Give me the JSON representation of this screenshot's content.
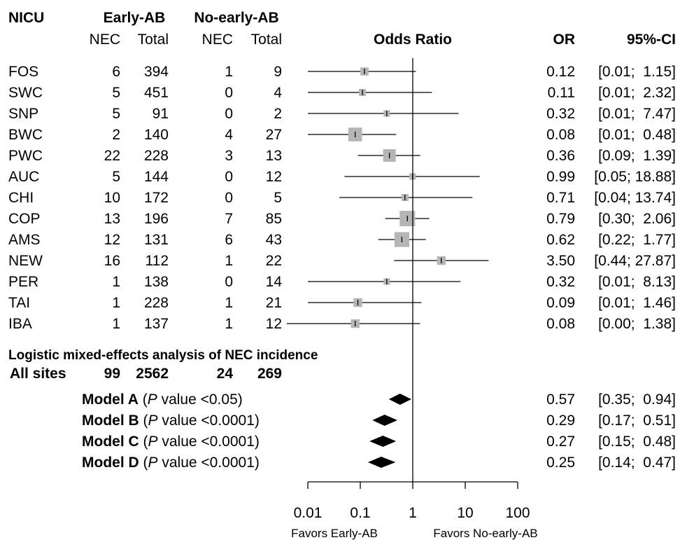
{
  "chart_data": {
    "type": "forest",
    "axis": {
      "scale": "log",
      "xlim": [
        0.01,
        100
      ],
      "ticks": [
        "0.01",
        "0.1",
        "1",
        "10",
        "100"
      ],
      "tick_values": [
        0.01,
        0.1,
        1,
        10,
        100
      ],
      "reference_line": 1,
      "left_label": "Favors Early-AB",
      "right_label": "Favors No-early-AB"
    },
    "headers": {
      "nicu": "NICU",
      "early": "Early-AB",
      "noearly": "No-early-AB",
      "nec": "NEC",
      "total": "Total",
      "odds_ratio": "Odds Ratio",
      "or": "OR",
      "ci": "95%-CI"
    },
    "sites": [
      {
        "name": "FOS",
        "early_nec": "6",
        "early_total": "394",
        "no_nec": "1",
        "no_total": "9",
        "or": 0.12,
        "lo": 0.01,
        "hi": 1.15,
        "or_text": "0.12",
        "ci_text": "[0.01;  1.15]",
        "weight": 0.35
      },
      {
        "name": "SWC",
        "early_nec": "5",
        "early_total": "451",
        "no_nec": "0",
        "no_total": "4",
        "or": 0.11,
        "lo": 0.01,
        "hi": 2.32,
        "or_text": "0.11",
        "ci_text": "[0.01;  2.32]",
        "weight": 0.25
      },
      {
        "name": "SNP",
        "early_nec": "5",
        "early_total": "91",
        "no_nec": "0",
        "no_total": "2",
        "or": 0.32,
        "lo": 0.01,
        "hi": 7.47,
        "or_text": "0.32",
        "ci_text": "[0.01;  7.47]",
        "weight": 0.2
      },
      {
        "name": "BWC",
        "early_nec": "2",
        "early_total": "140",
        "no_nec": "4",
        "no_total": "27",
        "or": 0.08,
        "lo": 0.01,
        "hi": 0.48,
        "or_text": "0.08",
        "ci_text": "[0.01;  0.48]",
        "weight": 0.85
      },
      {
        "name": "PWC",
        "early_nec": "22",
        "early_total": "228",
        "no_nec": "3",
        "no_total": "13",
        "or": 0.36,
        "lo": 0.09,
        "hi": 1.39,
        "or_text": "0.36",
        "ci_text": "[0.09;  1.39]",
        "weight": 0.75
      },
      {
        "name": "AUC",
        "early_nec": "5",
        "early_total": "144",
        "no_nec": "0",
        "no_total": "12",
        "or": 0.99,
        "lo": 0.05,
        "hi": 18.88,
        "or_text": "0.99",
        "ci_text": "[0.05; 18.88]",
        "weight": 0.2
      },
      {
        "name": "CHI",
        "early_nec": "10",
        "early_total": "172",
        "no_nec": "0",
        "no_total": "5",
        "or": 0.71,
        "lo": 0.04,
        "hi": 13.74,
        "or_text": "0.71",
        "ci_text": "[0.04; 13.74]",
        "weight": 0.25
      },
      {
        "name": "COP",
        "early_nec": "13",
        "early_total": "196",
        "no_nec": "7",
        "no_total": "85",
        "or": 0.79,
        "lo": 0.3,
        "hi": 2.06,
        "or_text": "0.79",
        "ci_text": "[0.30;  2.06]",
        "weight": 1.0
      },
      {
        "name": "AMS",
        "early_nec": "12",
        "early_total": "131",
        "no_nec": "6",
        "no_total": "43",
        "or": 0.62,
        "lo": 0.22,
        "hi": 1.77,
        "or_text": "0.62",
        "ci_text": "[0.22;  1.77]",
        "weight": 0.95
      },
      {
        "name": "NEW",
        "early_nec": "16",
        "early_total": "112",
        "no_nec": "1",
        "no_total": "22",
        "or": 3.5,
        "lo": 0.44,
        "hi": 27.87,
        "or_text": "3.50",
        "ci_text": "[0.44; 27.87]",
        "weight": 0.4
      },
      {
        "name": "PER",
        "early_nec": "1",
        "early_total": "138",
        "no_nec": "0",
        "no_total": "14",
        "or": 0.32,
        "lo": 0.01,
        "hi": 8.13,
        "or_text": "0.32",
        "ci_text": "[0.01;  8.13]",
        "weight": 0.2
      },
      {
        "name": "TAI",
        "early_nec": "1",
        "early_total": "228",
        "no_nec": "1",
        "no_total": "21",
        "or": 0.09,
        "lo": 0.01,
        "hi": 1.46,
        "or_text": "0.09",
        "ci_text": "[0.01;  1.46]",
        "weight": 0.4
      },
      {
        "name": "IBA",
        "early_nec": "1",
        "early_total": "137",
        "no_nec": "1",
        "no_total": "12",
        "or": 0.08,
        "lo": 0.0,
        "hi": 1.38,
        "or_text": "0.08",
        "ci_text": "[0.00;  1.38]",
        "weight": 0.4
      }
    ],
    "summary_title": "Logistic mixed-effects analysis of NEC incidence",
    "all_sites": {
      "label": "All sites",
      "early_nec": "99",
      "early_total": "2562",
      "no_nec": "24",
      "no_total": "269"
    },
    "models": [
      {
        "label": "Model A",
        "p_prefix": "(",
        "p_italic": "P",
        "p_rest": " value <0.05)",
        "or": 0.57,
        "lo": 0.35,
        "hi": 0.94,
        "or_text": "0.57",
        "ci_text": "[0.35;  0.94]"
      },
      {
        "label": "Model B",
        "p_prefix": "(",
        "p_italic": "P",
        "p_rest": " value <0.0001)",
        "or": 0.29,
        "lo": 0.17,
        "hi": 0.51,
        "or_text": "0.29",
        "ci_text": "[0.17;  0.51]"
      },
      {
        "label": "Model C",
        "p_prefix": "(",
        "p_italic": "P",
        "p_rest": " value <0.0001)",
        "or": 0.27,
        "lo": 0.15,
        "hi": 0.48,
        "or_text": "0.27",
        "ci_text": "[0.15;  0.48]"
      },
      {
        "label": "Model D",
        "p_prefix": "(",
        "p_italic": "P",
        "p_rest": " value <0.0001)",
        "or": 0.25,
        "lo": 0.14,
        "hi": 0.47,
        "or_text": "0.25",
        "ci_text": "[0.14;  0.47]"
      }
    ],
    "colors": {
      "box": "#b5b5b5",
      "line": "#000000",
      "diamond": "#000000"
    }
  }
}
